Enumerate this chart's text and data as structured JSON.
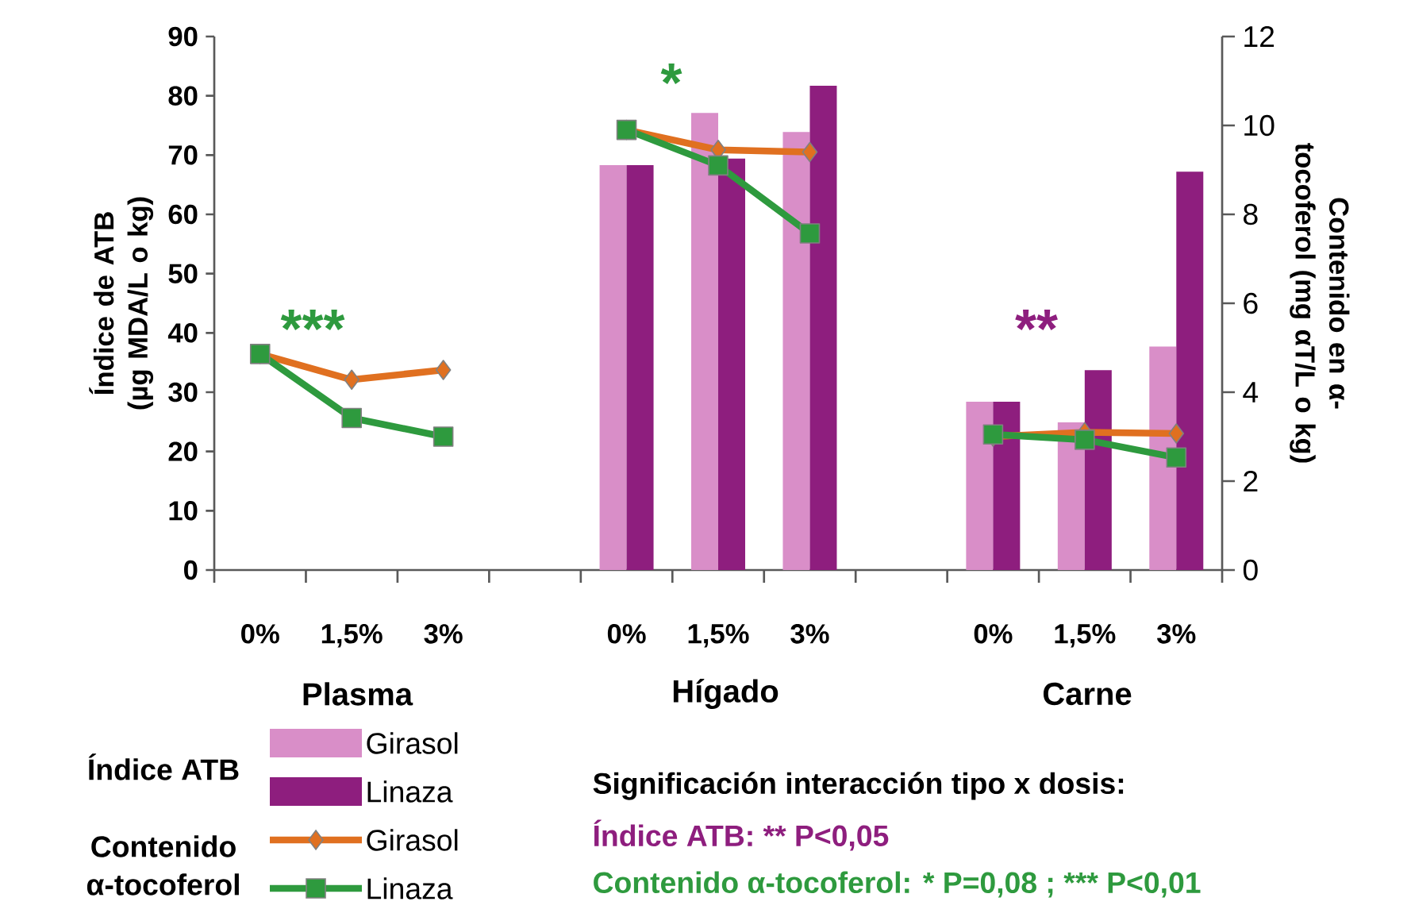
{
  "chart_data": {
    "type": "bar",
    "ylabel": "Índice de ATB (µg MDA/L o kg)",
    "y2label": "Contenido en α-tocoferol (mg αT/L o kg)",
    "categories": [
      "0%",
      "1,5%",
      "3%",
      null,
      "0%",
      "1,5%",
      "3%",
      null,
      "0%",
      "1,5%",
      "3%"
    ],
    "series": [
      {
        "name": "Girasol",
        "color": "#d98ec8",
        "values": [
          null,
          null,
          null,
          null,
          68.3,
          77.1,
          73.9,
          null,
          28.4,
          24.9,
          37.7
        ]
      },
      {
        "name": "Linaza",
        "color": "#8e1e7e",
        "values": [
          null,
          null,
          null,
          null,
          68.3,
          69.4,
          81.7,
          null,
          28.4,
          33.7,
          67.2
        ]
      },
      {
        "name": "Girasol",
        "type": "line",
        "axis": "y2",
        "marker": "diamond",
        "color": "#e07020",
        "values": [
          4.86,
          4.28,
          4.5,
          null,
          9.9,
          9.45,
          9.4,
          null,
          3.0,
          3.1,
          3.07
        ]
      },
      {
        "name": "Linaza",
        "type": "line",
        "axis": "y2",
        "marker": "square",
        "color": "#2e9a3e",
        "values": [
          4.86,
          3.42,
          3.0,
          null,
          9.9,
          9.1,
          7.57,
          null,
          3.05,
          2.93,
          2.53
        ]
      }
    ],
    "ylim": [
      0,
      90
    ],
    "yticks": [
      0,
      10,
      20,
      30,
      40,
      50,
      60,
      70,
      80,
      90
    ],
    "y2lim": [
      0,
      12
    ],
    "y2ticks": [
      0,
      2,
      4,
      6,
      8,
      10,
      12
    ],
    "grid": false,
    "legend": "bottom left",
    "annotations": [
      "***",
      "*",
      "**",
      "Plasma",
      "Hígado",
      "Carne",
      "Índice ATB",
      "Contenido α-tocoferol",
      "Significación interacción tipo x dosis:",
      "Índice ATB: ** P<0,05",
      "Contenido α-tocoferol: * P=0,08 ; *** P<0,01"
    ]
  }
}
